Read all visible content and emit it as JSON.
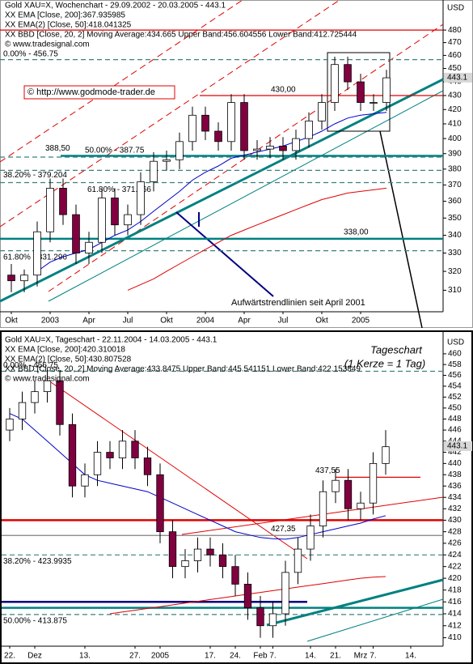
{
  "chart_data": [
    {
      "type": "candlestick",
      "title": "Gold XAU=X, Wochenchart - 29.09.2002 - 20.03.2005 - 443.1",
      "bollinger": {
        "name": "XX BBD [Close, 20, 2] Moving Average:434.665 Upper Band:456.604556 Lower Band:412.725444",
        "color": "#9a9a9a"
      },
      "source": "© www.tradesignal.com",
      "link": "© http://www.godmode-trader.de",
      "annotation": "Aufwärtstrendlinien seit April 2001",
      "axis_label": "USD",
      "last_price": 443.1,
      "log_scale": true,
      "ylim": [
        299,
        494
      ],
      "yticks": [
        310,
        320,
        330,
        340,
        350,
        360,
        370,
        380,
        390,
        400,
        410,
        420,
        430,
        440,
        450,
        460,
        470,
        480
      ],
      "categories": [
        "Okt",
        null,
        null,
        "2003",
        null,
        null,
        "Apr",
        null,
        null,
        "Jul",
        null,
        null,
        "Okt",
        null,
        null,
        "2004",
        null,
        null,
        "Apr",
        null,
        null,
        "Jul",
        null,
        null,
        "Okt",
        null,
        null,
        "2005",
        null,
        null
      ],
      "open": [
        318,
        315,
        318,
        342,
        368,
        352,
        330,
        336,
        362,
        346,
        352,
        372,
        385,
        386,
        398,
        416,
        405,
        398,
        425,
        392,
        393,
        395,
        392,
        400,
        412,
        425,
        453,
        440,
        425,
        425
      ],
      "high": [
        324,
        321,
        348,
        374,
        374,
        358,
        342,
        368,
        368,
        358,
        378,
        391,
        392,
        404,
        422,
        422,
        411,
        431,
        431,
        399,
        401,
        401,
        406,
        418,
        431,
        459,
        459,
        446,
        431,
        449
      ],
      "low": [
        309,
        309,
        312,
        336,
        346,
        324,
        324,
        330,
        340,
        340,
        346,
        366,
        379,
        380,
        392,
        399,
        392,
        392,
        386,
        386,
        387,
        386,
        386,
        394,
        406,
        419,
        434,
        419,
        419,
        419
      ],
      "close": [
        315,
        318,
        342,
        368,
        352,
        330,
        336,
        362,
        346,
        352,
        372,
        385,
        386,
        398,
        416,
        405,
        398,
        425,
        392,
        393,
        395,
        392,
        400,
        412,
        425,
        453,
        440,
        425,
        425,
        443
      ],
      "series": [
        {
          "name": "XX EMA [Close, 200]:367.935985",
          "color": "#e00000",
          "values": [
            null,
            null,
            null,
            null,
            null,
            null,
            null,
            null,
            null,
            310,
            313,
            316,
            320,
            324,
            328,
            332,
            336,
            340,
            343,
            346,
            349,
            352,
            355,
            358,
            361,
            363,
            365,
            366,
            367,
            368
          ]
        },
        {
          "name": "XX EMA(2) [Close, 50]:418.041325",
          "color": "#0000cc",
          "values": [
            null,
            null,
            320,
            325,
            328,
            330,
            332,
            336,
            340,
            343,
            348,
            354,
            360,
            366,
            373,
            378,
            382,
            387,
            389,
            391,
            393,
            395,
            398,
            401,
            405,
            410,
            414,
            416,
            417,
            418
          ]
        }
      ],
      "levels": [
        {
          "value": 480,
          "color": "#e00000"
        },
        {
          "value": 456.75,
          "label": "0.00% - 456.75",
          "color": "#3a8080",
          "dashed": true
        },
        {
          "value": 430,
          "label": "430,00",
          "color": "#e00000"
        },
        {
          "value": 388.5,
          "label": "388,50",
          "color": "#008080",
          "thick": true
        },
        {
          "value": 387.75,
          "label": "50.00% - 387.75",
          "color": "#3a8080",
          "dashed": true
        },
        {
          "value": 379.204,
          "label": "38.20% - 379.204",
          "color": "#3a8080",
          "dashed": true
        },
        {
          "value": 371.466,
          "label": "61.80% - 371.466",
          "color": "#3a8080",
          "dashed": true
        },
        {
          "value": 338,
          "label": "338,00",
          "color": "#008080",
          "thick": true
        },
        {
          "value": 331.296,
          "label": "61.80% - 331.296",
          "color": "#3a8080",
          "dashed": true
        }
      ]
    },
    {
      "type": "candlestick",
      "title": "Gold XAU=X, Tageschart - 22.11.2004 - 14.03.2005 - 443.1",
      "bollinger": {
        "name": "XX BBD [Close, 20, 2] Moving Average:433.8475 Upper Band:445.541151 Lower Band:422.153849",
        "color": "#9a9a9a"
      },
      "source": "© www.tradesignal.com",
      "subtitle": "Tageschart",
      "note": "(1 Kerze = 1 Tag)",
      "axis_label": "USD",
      "last_price": 443.1,
      "log_scale": true,
      "ylim": [
        408.6,
        461.8
      ],
      "yticks": [
        410,
        412,
        414,
        416,
        418,
        420,
        422,
        424,
        426,
        428,
        430,
        432,
        434,
        436,
        438,
        440,
        442,
        444,
        446,
        448,
        450,
        452,
        454,
        456,
        458,
        460
      ],
      "categories": [
        "22.",
        null,
        "Dez",
        null,
        null,
        null,
        "13.",
        null,
        null,
        null,
        "27.",
        null,
        "2005",
        null,
        null,
        null,
        "17.",
        null,
        "24.",
        null,
        "Feb",
        "7.",
        null,
        null,
        "14.",
        null,
        "21.",
        null,
        "Mrz",
        "7.",
        null,
        null,
        "14."
      ],
      "open": [
        446,
        448,
        451,
        453,
        455,
        447,
        436,
        438,
        442,
        441,
        444,
        441,
        438,
        428,
        422,
        423,
        425,
        424,
        422,
        419,
        415,
        412,
        414,
        421,
        425,
        429,
        435,
        437,
        432,
        433,
        440,
        null,
        null
      ],
      "high": [
        450,
        453,
        455,
        457,
        457,
        449,
        440,
        444,
        444,
        446,
        446,
        443,
        440,
        430,
        425,
        427,
        427,
        426,
        424,
        421,
        417,
        416,
        423,
        427,
        431,
        437,
        439,
        439,
        435,
        442,
        446,
        null,
        null
      ],
      "low": [
        444,
        446,
        449,
        451,
        445,
        434,
        434,
        436,
        439,
        439,
        439,
        436,
        426,
        420,
        420,
        421,
        422,
        420,
        417,
        413,
        410,
        410,
        412,
        419,
        423,
        427,
        433,
        430,
        430,
        431,
        438,
        null,
        null
      ],
      "close": [
        448,
        451,
        453,
        455,
        447,
        436,
        438,
        442,
        441,
        444,
        441,
        438,
        428,
        422,
        423,
        425,
        424,
        422,
        419,
        415,
        412,
        414,
        421,
        425,
        429,
        435,
        437,
        432,
        433,
        440,
        443,
        null,
        null
      ],
      "series": [
        {
          "name": "XX EMA [Close, 200]:420.310018",
          "color": "#e00000",
          "values": [
            null,
            null,
            null,
            null,
            null,
            null,
            null,
            null,
            414,
            414.3,
            414.6,
            414.9,
            415.2,
            415.5,
            415.8,
            416.1,
            416.4,
            416.7,
            417,
            417.3,
            417.6,
            417.9,
            418.2,
            418.5,
            418.8,
            419.1,
            419.4,
            419.7,
            420,
            420.2,
            420.3,
            null,
            null
          ]
        },
        {
          "name": "XX EMA(2) [Close, 50]:430.807528",
          "color": "#0000cc",
          "values": [
            449,
            448,
            446,
            444,
            442,
            440,
            438,
            437,
            436.5,
            436,
            435.5,
            435,
            434,
            433,
            432,
            431,
            430,
            429,
            428,
            427.5,
            427,
            426.8,
            426.7,
            427,
            427.5,
            428,
            428.5,
            429,
            429.5,
            430.2,
            430.8,
            null,
            null
          ]
        }
      ],
      "levels": [
        {
          "value": 456.75,
          "label": "0.00% - 456.75",
          "color": "#3a8080",
          "dashed": true
        },
        {
          "value": 437.55,
          "label": "437,55",
          "color": "#e00000"
        },
        {
          "value": 430,
          "color": "#e00000",
          "thick": true
        },
        {
          "value": 427.35,
          "label": "427,35",
          "color": "#808080"
        },
        {
          "value": 423.9935,
          "label": "38.20% - 423.9935",
          "color": "#3a8080",
          "dashed": true
        },
        {
          "value": 416,
          "color": "#000080",
          "thick": true
        },
        {
          "value": 415,
          "color": "#008080",
          "thick": true
        },
        {
          "value": 413.875,
          "label": "50.00% - 413.875",
          "color": "#3a8080",
          "dashed": true
        }
      ]
    }
  ]
}
